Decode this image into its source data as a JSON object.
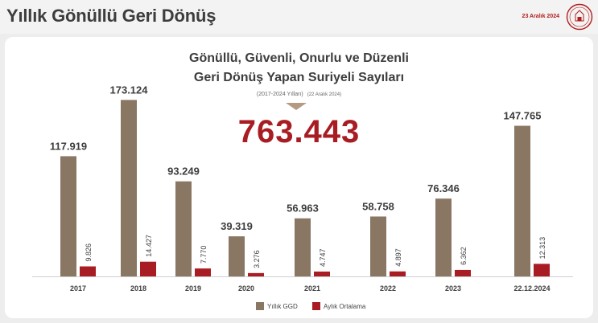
{
  "header": {
    "title": "Yıllık Gönüllü Geri Dönüş",
    "date": "23 Aralık 2024"
  },
  "chart": {
    "title_line1": "Gönüllü, Güvenli, Onurlu ve Düzenli",
    "title_line2": "Geri Dönüş Yapan Suriyeli Sayıları",
    "subtitle": "(2017-2024 Yılları)",
    "subtitle_date": "(22 Aralık 2024)",
    "total": "763.443"
  },
  "colors": {
    "annual": "#8a7763",
    "monthly": "#a81d23",
    "accent_red": "#a81d23"
  },
  "chart_data": {
    "type": "bar",
    "categories": [
      "2017",
      "2018",
      "2019",
      "2020",
      "2021",
      "2022",
      "2023",
      "22.12.2024"
    ],
    "series": [
      {
        "name": "Yıllık GGD",
        "values": [
          117919,
          173124,
          93249,
          39319,
          56963,
          58758,
          76346,
          147765
        ],
        "labels": [
          "117.919",
          "173.124",
          "93.249",
          "39.319",
          "56.963",
          "58.758",
          "76.346",
          "147.765"
        ]
      },
      {
        "name": "Aylık Ortalama",
        "values": [
          9826,
          14427,
          7770,
          3276,
          4747,
          4897,
          6362,
          12313
        ],
        "labels": [
          "9.826",
          "14.427",
          "7.770",
          "3.276",
          "4.747",
          "4.897",
          "6.362",
          "12.313"
        ]
      }
    ],
    "ylim": [
      0,
      175000
    ],
    "grid": false,
    "legend": "bottom-center"
  }
}
